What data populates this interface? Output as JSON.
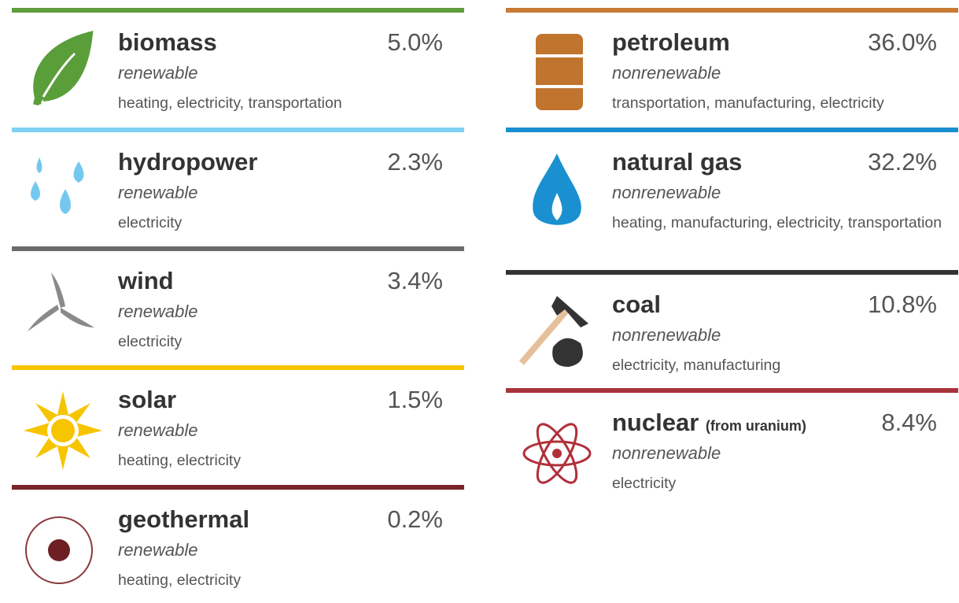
{
  "left": [
    {
      "name": "biomass",
      "share": "5.0%",
      "type": "renewable",
      "uses": "heating, electricity, transportation",
      "color": "#5e9e3c"
    },
    {
      "name": "hydropower",
      "share": "2.3%",
      "type": "renewable",
      "uses": "electricity",
      "color": "#7fd0f4"
    },
    {
      "name": "wind",
      "share": "3.4%",
      "type": "renewable",
      "uses": "electricity",
      "color": "#6b6b6b"
    },
    {
      "name": "solar",
      "share": "1.5%",
      "type": "renewable",
      "uses": "heating, electricity",
      "color": "#f7c400"
    },
    {
      "name": "geothermal",
      "share": "0.2%",
      "type": "renewable",
      "uses": "heating, electricity",
      "color": "#7a2328"
    }
  ],
  "right": [
    {
      "name": "petroleum",
      "share": "36.0%",
      "type": "nonrenewable",
      "uses": "transportation, manufacturing, electricity",
      "color": "#c97a35"
    },
    {
      "name": "natural gas",
      "share": "32.2%",
      "type": "nonrenewable",
      "uses": "heating, manufacturing, electricity, transportation",
      "color": "#1a8fd0"
    },
    {
      "name": "coal",
      "share": "10.8%",
      "type": "nonrenewable",
      "uses": "electricity, manufacturing",
      "color": "#333333"
    },
    {
      "name": "nuclear",
      "note": "(from uranium)",
      "share": "8.4%",
      "type": "nonrenewable",
      "uses": "electricity",
      "color": "#a8333c"
    }
  ]
}
